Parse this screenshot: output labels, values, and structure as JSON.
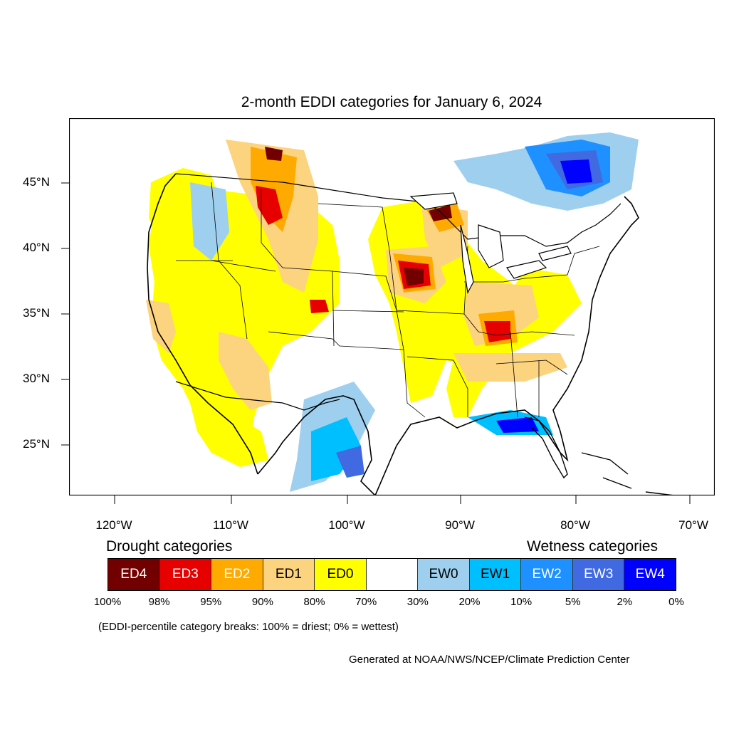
{
  "title": "2-month EDDI categories for January 6, 2024",
  "lat_labels": [
    "45°N",
    "40°N",
    "35°N",
    "30°N",
    "25°N"
  ],
  "lon_labels": [
    "120°W",
    "110°W",
    "100°W",
    "90°W",
    "80°W",
    "70°W"
  ],
  "legend": {
    "drought_heading": "Drought categories",
    "wetness_heading": "Wetness categories",
    "categories": [
      {
        "label": "ED4",
        "color": "#730000",
        "text_color": "#ffffff"
      },
      {
        "label": "ED3",
        "color": "#e60000",
        "text_color": "#ffffff"
      },
      {
        "label": "ED2",
        "color": "#ffaa00",
        "text_color": "#ffffff"
      },
      {
        "label": "ED1",
        "color": "#fcd37f",
        "text_color": "#000000"
      },
      {
        "label": "ED0",
        "color": "#ffff00",
        "text_color": "#000000"
      },
      {
        "label": "",
        "color": "#ffffff",
        "text_color": "#000000"
      },
      {
        "label": "EW0",
        "color": "#9ecfef",
        "text_color": "#000000"
      },
      {
        "label": "EW1",
        "color": "#00bfff",
        "text_color": "#000000"
      },
      {
        "label": "EW2",
        "color": "#1e90ff",
        "text_color": "#ffffff"
      },
      {
        "label": "EW3",
        "color": "#4169e1",
        "text_color": "#ffffff"
      },
      {
        "label": "EW4",
        "color": "#0000ff",
        "text_color": "#ffffff"
      }
    ],
    "breaks": [
      "100%",
      "98%",
      "95%",
      "90%",
      "80%",
      "70%",
      "30%",
      "20%",
      "10%",
      "5%",
      "2%",
      "0%"
    ]
  },
  "note": "(EDDI-percentile category breaks: 100% = driest; 0% = wettest)",
  "credit": "Generated at NOAA/NWS/NCEP/Climate Prediction Center"
}
